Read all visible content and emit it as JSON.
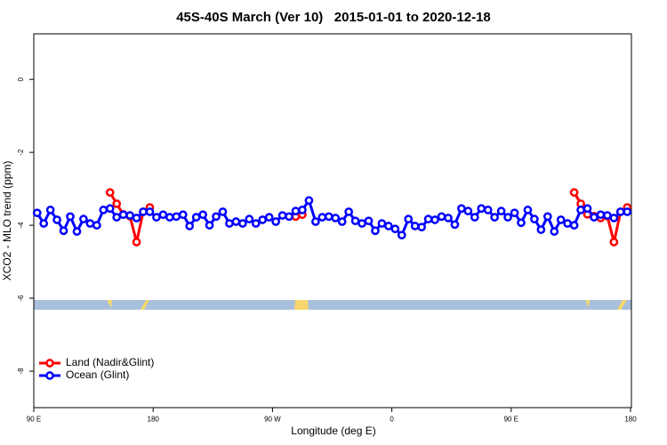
{
  "chart_data": {
    "type": "line",
    "title": "45S-40S March (Ver 10)   2015-01-01 to 2020-12-18",
    "x_label": "Longitude (deg E)",
    "y_label": "XCO2 - MLO trend (ppm)",
    "x": [
      92.5,
      97.5,
      102.5,
      107.5,
      112.5,
      117.5,
      122.5,
      127.5,
      132.5,
      137.5,
      142.5,
      147.5,
      152.5,
      157.5,
      162.5,
      167.5,
      172.5,
      177.5,
      182.5,
      187.5,
      192.5,
      197.5,
      202.5,
      207.5,
      212.5,
      217.5,
      222.5,
      227.5,
      232.5,
      237.5,
      242.5,
      247.5,
      252.5,
      257.5,
      262.5,
      267.5,
      272.5,
      277.5,
      282.5,
      287.5,
      292.5,
      297.5,
      302.5,
      307.5,
      312.5,
      317.5,
      322.5,
      327.5,
      332.5,
      337.5,
      342.5,
      347.5,
      352.5,
      357.5,
      362.5,
      367.5,
      372.5,
      377.5,
      382.5,
      387.5,
      392.5,
      397.5,
      402.5,
      407.5,
      412.5,
      417.5,
      422.5,
      427.5,
      432.5,
      437.5,
      442.5,
      447.5,
      452.5,
      457.5,
      462.5,
      467.5,
      472.5,
      477.5,
      482.5,
      487.5,
      492.5,
      497.5,
      502.5,
      507.5,
      512.5,
      517.5,
      522.5,
      527.5,
      532.5,
      537.5
    ],
    "series": [
      {
        "name": "Land (Nadir&Glint)",
        "color": "#ff0000",
        "values": [
          null,
          null,
          null,
          null,
          null,
          null,
          null,
          null,
          null,
          null,
          null,
          -3.1,
          -3.41,
          -3.7,
          -3.75,
          -4.46,
          -3.63,
          -3.51,
          null,
          null,
          null,
          null,
          null,
          null,
          null,
          null,
          null,
          null,
          null,
          null,
          null,
          null,
          null,
          null,
          null,
          null,
          null,
          null,
          null,
          -3.76,
          -3.71,
          null,
          null,
          null,
          null,
          null,
          null,
          null,
          null,
          null,
          null,
          null,
          null,
          null,
          null,
          null,
          null,
          null,
          null,
          null,
          null,
          null,
          null,
          null,
          null,
          null,
          null,
          null,
          null,
          null,
          null,
          null,
          null,
          null,
          null,
          null,
          null,
          null,
          null,
          null,
          null,
          -3.1,
          -3.41,
          -3.7,
          -3.75,
          -3.8,
          -3.75,
          -4.46,
          -3.63,
          -3.51
        ]
      },
      {
        "name": "Ocean (Glint)",
        "color": "#0000ff",
        "values": [
          -3.66,
          -3.95,
          -3.58,
          -3.85,
          -4.15,
          -3.76,
          -4.17,
          -3.83,
          -3.95,
          -4.0,
          -3.58,
          -3.54,
          -3.78,
          -3.71,
          -3.73,
          -3.8,
          -3.63,
          -3.63,
          -3.78,
          -3.71,
          -3.78,
          -3.76,
          -3.71,
          -4.02,
          -3.78,
          -3.71,
          -4.0,
          -3.76,
          -3.63,
          -3.95,
          -3.9,
          -3.95,
          -3.83,
          -3.95,
          -3.85,
          -3.78,
          -3.9,
          -3.73,
          -3.76,
          -3.61,
          -3.58,
          -3.32,
          -3.9,
          -3.78,
          -3.76,
          -3.8,
          -3.9,
          -3.63,
          -3.88,
          -3.95,
          -3.88,
          -4.15,
          -3.95,
          -4.02,
          -4.1,
          -4.27,
          -3.83,
          -4.02,
          -4.05,
          -3.83,
          -3.85,
          -3.76,
          -3.8,
          -3.98,
          -3.54,
          -3.61,
          -3.78,
          -3.54,
          -3.58,
          -3.78,
          -3.61,
          -3.78,
          -3.66,
          -3.93,
          -3.58,
          -3.83,
          -4.12,
          -3.76,
          -4.17,
          -3.85,
          -3.95,
          -4.0,
          -3.58,
          -3.54,
          -3.78,
          -3.71,
          -3.73,
          -3.8,
          -3.63,
          -3.63
        ]
      }
    ],
    "xlim": [
      90,
      540
    ],
    "xticks": [
      {
        "value": 90,
        "label": "90 E"
      },
      180,
      {
        "value": 270,
        "label": "90 W"
      },
      {
        "value": 360,
        "label": "0"
      },
      {
        "value": 450,
        "label": "90 E"
      },
      {
        "value": 540,
        "label": "180"
      }
    ],
    "ylim": [
      -9,
      1.25
    ],
    "yticks": [
      0,
      -2,
      -4,
      -6,
      -8
    ],
    "legend": "bottomleft"
  }
}
